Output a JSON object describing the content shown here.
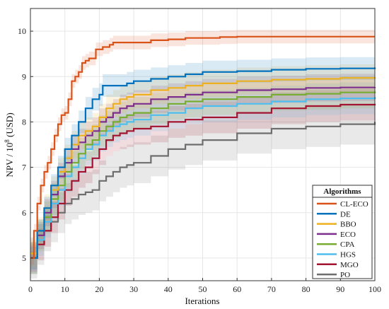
{
  "chart_data": {
    "type": "line",
    "xlabel": "Iterations",
    "ylabel_prefix": "NPV / 10",
    "ylabel_exp": "8",
    "ylabel_suffix": " (USD)",
    "xlim": [
      0,
      100
    ],
    "ylim": [
      4.5,
      10.5
    ],
    "xticks": [
      0,
      10,
      20,
      30,
      40,
      50,
      60,
      70,
      80,
      90,
      100
    ],
    "yticks": [
      5,
      6,
      7,
      8,
      9,
      10
    ],
    "legend": {
      "title": "Algorithms",
      "placement": "bottom-right"
    },
    "series": [
      {
        "name": "CL-ECO",
        "color": "#d95319",
        "x": [
          0,
          1,
          2,
          3,
          4,
          5,
          6,
          7,
          8,
          9,
          10,
          11,
          12,
          13,
          14,
          15,
          16,
          17,
          18,
          19,
          20,
          21,
          22,
          23,
          24,
          25,
          30,
          35,
          40,
          45,
          50,
          55,
          60,
          70,
          80,
          90,
          100
        ],
        "y": [
          5.0,
          5.6,
          6.2,
          6.6,
          6.9,
          7.1,
          7.4,
          7.7,
          7.95,
          8.15,
          8.2,
          8.5,
          8.9,
          9.0,
          9.1,
          9.3,
          9.35,
          9.4,
          9.4,
          9.6,
          9.6,
          9.65,
          9.65,
          9.7,
          9.75,
          9.75,
          9.75,
          9.8,
          9.82,
          9.85,
          9.85,
          9.87,
          9.88,
          9.88,
          9.88,
          9.88,
          9.88
        ],
        "band": 0.15
      },
      {
        "name": "DE",
        "color": "#0072bd",
        "x": [
          0,
          2,
          4,
          6,
          8,
          10,
          12,
          14,
          16,
          18,
          20,
          21,
          22,
          25,
          28,
          30,
          35,
          40,
          45,
          50,
          60,
          70,
          80,
          90,
          100
        ],
        "y": [
          5.0,
          5.6,
          6.1,
          6.6,
          7.0,
          7.4,
          7.7,
          8.0,
          8.3,
          8.5,
          8.6,
          8.8,
          8.8,
          8.8,
          8.85,
          8.9,
          8.95,
          9.0,
          9.05,
          9.1,
          9.12,
          9.15,
          9.17,
          9.18,
          9.2
        ],
        "band": 0.25
      },
      {
        "name": "BBO",
        "color": "#edb120",
        "x": [
          0,
          2,
          4,
          6,
          8,
          10,
          12,
          14,
          16,
          18,
          20,
          22,
          24,
          26,
          28,
          30,
          35,
          40,
          45,
          50,
          60,
          70,
          80,
          90,
          100
        ],
        "y": [
          5.1,
          5.6,
          6.1,
          6.5,
          6.9,
          7.2,
          7.5,
          7.7,
          7.8,
          7.9,
          8.1,
          8.3,
          8.4,
          8.5,
          8.55,
          8.6,
          8.7,
          8.75,
          8.8,
          8.85,
          8.9,
          8.93,
          8.95,
          8.97,
          8.98
        ],
        "band": 0.3
      },
      {
        "name": "ECO",
        "color": "#7e2f8e",
        "x": [
          0,
          2,
          4,
          6,
          8,
          10,
          12,
          14,
          16,
          18,
          20,
          22,
          24,
          26,
          28,
          30,
          35,
          40,
          45,
          50,
          60,
          70,
          80,
          90,
          100
        ],
        "y": [
          5.0,
          5.5,
          6.0,
          6.4,
          6.8,
          7.1,
          7.4,
          7.55,
          7.7,
          7.8,
          8.0,
          8.1,
          8.2,
          8.3,
          8.35,
          8.4,
          8.5,
          8.55,
          8.6,
          8.65,
          8.7,
          8.72,
          8.75,
          8.76,
          8.77
        ],
        "band": 0.3
      },
      {
        "name": "CPA",
        "color": "#77ac30",
        "x": [
          0,
          2,
          4,
          6,
          8,
          10,
          12,
          14,
          16,
          18,
          20,
          22,
          24,
          26,
          28,
          30,
          35,
          40,
          45,
          50,
          60,
          70,
          80,
          90,
          100
        ],
        "y": [
          5.0,
          5.5,
          5.9,
          6.3,
          6.6,
          6.9,
          7.1,
          7.3,
          7.5,
          7.6,
          7.8,
          7.9,
          8.0,
          8.1,
          8.15,
          8.2,
          8.3,
          8.4,
          8.45,
          8.5,
          8.55,
          8.6,
          8.62,
          8.65,
          8.67
        ],
        "band": 0.35
      },
      {
        "name": "HGS",
        "color": "#4dbeee",
        "x": [
          0,
          2,
          4,
          6,
          8,
          10,
          12,
          14,
          16,
          18,
          20,
          22,
          24,
          26,
          28,
          30,
          35,
          40,
          45,
          50,
          60,
          70,
          80,
          90,
          100
        ],
        "y": [
          5.0,
          5.4,
          5.8,
          6.2,
          6.5,
          6.8,
          7.0,
          7.2,
          7.4,
          7.5,
          7.7,
          7.8,
          7.9,
          7.95,
          8.0,
          8.05,
          8.15,
          8.2,
          8.3,
          8.35,
          8.4,
          8.45,
          8.5,
          8.52,
          8.55
        ],
        "band": 0.35
      },
      {
        "name": "MGO",
        "color": "#a2142f",
        "x": [
          0,
          2,
          4,
          6,
          8,
          10,
          12,
          14,
          16,
          18,
          20,
          22,
          24,
          26,
          28,
          30,
          35,
          40,
          45,
          50,
          60,
          70,
          80,
          90,
          100
        ],
        "y": [
          5.0,
          5.3,
          5.6,
          5.9,
          6.2,
          6.5,
          6.7,
          6.9,
          7.0,
          7.2,
          7.4,
          7.6,
          7.7,
          7.75,
          7.8,
          7.85,
          7.9,
          8.0,
          8.05,
          8.1,
          8.2,
          8.3,
          8.35,
          8.38,
          8.4
        ],
        "band": 0.35
      },
      {
        "name": "PO",
        "color": "#6e6e6e",
        "x": [
          0,
          2,
          4,
          6,
          8,
          10,
          12,
          14,
          16,
          18,
          20,
          22,
          24,
          26,
          28,
          30,
          35,
          40,
          45,
          50,
          60,
          70,
          80,
          90,
          100
        ],
        "y": [
          5.0,
          5.3,
          5.6,
          5.8,
          6.0,
          6.2,
          6.3,
          6.4,
          6.45,
          6.5,
          6.7,
          6.8,
          6.9,
          7.0,
          7.05,
          7.1,
          7.25,
          7.4,
          7.5,
          7.6,
          7.75,
          7.85,
          7.9,
          7.95,
          8.0
        ],
        "band": 0.45
      }
    ]
  }
}
